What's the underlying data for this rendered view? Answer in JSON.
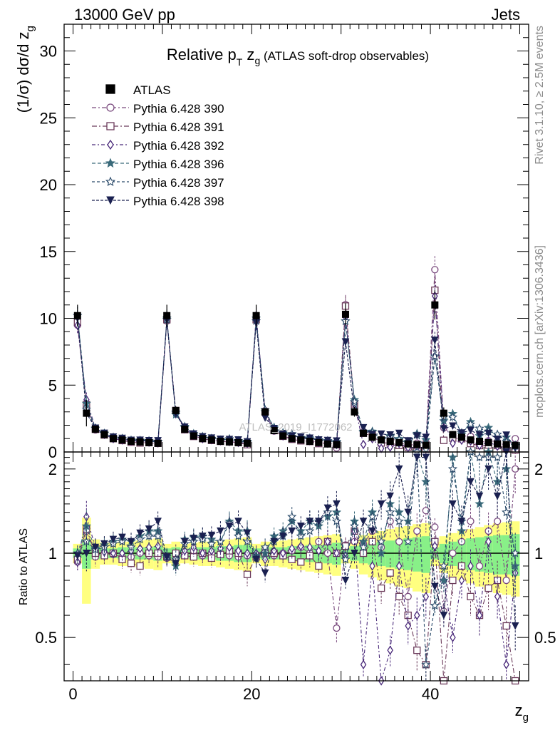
{
  "header": {
    "left": "13000 GeV pp",
    "right": "Jets"
  },
  "side_text": {
    "top": "Rivet 3.1.10, ≥ 2.5M events",
    "bottom": "mcplots.cern.ch [arXiv:1306.3436]"
  },
  "watermark": "ATLAS_2019_I1772062",
  "chart_data": {
    "type": "line",
    "title": "Relative p_T z_g (ATLAS soft-drop observables)",
    "xlabel": "z_g",
    "ylabel": "(1/σ) dσ/d z_g",
    "ratio_ylabel": "Ratio to ATLAS",
    "xlim": [
      -1,
      51
    ],
    "ylim": [
      0,
      32
    ],
    "ratio_ylim": [
      0.35,
      2.3
    ],
    "xticks": [
      0,
      20,
      40
    ],
    "yticks": [
      0,
      5,
      10,
      15,
      20,
      25,
      30
    ],
    "ratio_yticks": [
      0.5,
      1,
      2
    ],
    "legend_position": "top-left",
    "data": {
      "name": "ATLAS",
      "x": [
        0.5,
        1.5,
        2.5,
        3.5,
        4.5,
        5.5,
        6.5,
        7.5,
        8.5,
        9.5,
        10.5,
        11.5,
        12.5,
        13.5,
        14.5,
        15.5,
        16.5,
        17.5,
        18.5,
        19.5,
        20.5,
        21.5,
        22.5,
        23.5,
        24.5,
        25.5,
        26.5,
        27.5,
        28.5,
        29.5,
        30.5,
        31.5,
        32.5,
        33.5,
        34.5,
        35.5,
        36.5,
        37.5,
        38.5,
        39.5,
        40.5,
        41.5,
        42.5,
        43.5,
        44.5,
        45.5,
        46.5,
        47.5,
        48.5,
        49.5
      ],
      "y": [
        10.2,
        2.9,
        1.7,
        1.3,
        1.0,
        0.9,
        0.8,
        0.75,
        0.7,
        0.65,
        10.2,
        3.1,
        1.7,
        1.2,
        1.0,
        0.9,
        0.8,
        0.75,
        0.7,
        0.65,
        10.2,
        3.0,
        1.6,
        1.2,
        1.0,
        0.9,
        0.8,
        0.7,
        0.6,
        0.55,
        10.3,
        3.0,
        1.4,
        1.1,
        0.9,
        0.8,
        0.7,
        0.6,
        0.55,
        0.5,
        11.0,
        2.9,
        1.3,
        1.1,
        0.9,
        0.8,
        0.7,
        0.6,
        0.55,
        0.5
      ],
      "band_stat": [
        0.04,
        0.12,
        0.05,
        0.04,
        0.04,
        0.05,
        0.05,
        0.05,
        0.05,
        0.06,
        0.04,
        0.05,
        0.04,
        0.05,
        0.05,
        0.05,
        0.06,
        0.06,
        0.07,
        0.07,
        0.04,
        0.05,
        0.05,
        0.05,
        0.06,
        0.06,
        0.07,
        0.07,
        0.08,
        0.09,
        0.04,
        0.06,
        0.08,
        0.09,
        0.1,
        0.11,
        0.12,
        0.13,
        0.14,
        0.15,
        0.05,
        0.08,
        0.1,
        0.12,
        0.13,
        0.14,
        0.15,
        0.16,
        0.16,
        0.17
      ],
      "band_total": [
        0.08,
        0.34,
        0.12,
        0.09,
        0.09,
        0.1,
        0.1,
        0.11,
        0.12,
        0.13,
        0.08,
        0.1,
        0.08,
        0.09,
        0.1,
        0.1,
        0.11,
        0.12,
        0.13,
        0.14,
        0.08,
        0.1,
        0.1,
        0.11,
        0.12,
        0.13,
        0.14,
        0.15,
        0.16,
        0.17,
        0.08,
        0.12,
        0.16,
        0.18,
        0.2,
        0.22,
        0.24,
        0.25,
        0.27,
        0.28,
        0.1,
        0.15,
        0.18,
        0.2,
        0.22,
        0.24,
        0.26,
        0.28,
        0.29,
        0.3
      ]
    },
    "series": [
      {
        "name": "Pythia 6.428 390",
        "color": "#7a4a7e",
        "marker": "circle-open",
        "ratio": [
          0.93,
          1.2,
          0.97,
          1.0,
          0.99,
          0.97,
          0.97,
          1.0,
          0.98,
          0.97,
          0.96,
          0.95,
          0.99,
          1.02,
          0.98,
          1.0,
          0.99,
          0.98,
          0.97,
          0.98,
          0.99,
          1.03,
          0.98,
          1.0,
          1.02,
          1.05,
          1.0,
          1.1,
          1.0,
          0.54,
          1.07,
          1.1,
          1.08,
          1.2,
          1.05,
          1.3,
          1.1,
          0.7,
          1.2,
          1.42,
          1.24,
          0.62,
          1.0,
          1.1,
          1.3,
          0.9,
          1.2,
          1.3,
          0.8,
          2.0
        ]
      },
      {
        "name": "Pythia 6.428 391",
        "color": "#6b3a5a",
        "marker": "square-open",
        "ratio": [
          0.95,
          1.22,
          1.0,
          0.98,
          1.0,
          0.95,
          0.92,
          0.9,
          1.0,
          1.0,
          0.97,
          1.0,
          0.98,
          0.97,
          1.0,
          0.96,
          0.99,
          1.02,
          1.0,
          0.84,
          0.97,
          1.0,
          1.0,
          0.98,
          0.95,
          0.93,
          0.98,
          0.9,
          1.1,
          1.0,
          1.06,
          1.2,
          1.0,
          1.1,
          0.75,
          0.85,
          0.7,
          0.6,
          0.45,
          0.4,
          1.1,
          0.3,
          0.8,
          0.9,
          0.7,
          0.6,
          0.75,
          0.8,
          0.55,
          0.3
        ]
      },
      {
        "name": "Pythia 6.428 392",
        "color": "#4a2a7a",
        "marker": "diamond-open",
        "ratio": [
          0.93,
          1.35,
          1.05,
          1.01,
          1.0,
          1.0,
          1.02,
          1.04,
          1.05,
          1.06,
          0.97,
          0.92,
          1.02,
          1.05,
          1.0,
          1.02,
          1.04,
          1.05,
          1.02,
          1.0,
          1.0,
          0.95,
          1.02,
          1.0,
          1.04,
          1.06,
          1.05,
          1.02,
          1.1,
          1.0,
          0.98,
          1.2,
          0.4,
          0.9,
          0.3,
          0.45,
          0.9,
          0.55,
          0.6,
          0.7,
          1.06,
          0.8,
          0.5,
          0.8,
          0.9,
          0.6,
          1.1,
          0.7,
          0.4,
          0.85
        ]
      },
      {
        "name": "Pythia 6.428 396",
        "color": "#3a6a7a",
        "marker": "star-filled",
        "ratio": [
          1.0,
          1.25,
          1.04,
          1.07,
          1.1,
          1.12,
          1.1,
          1.15,
          1.2,
          1.2,
          0.98,
          0.9,
          1.12,
          1.14,
          1.15,
          1.12,
          1.1,
          1.3,
          1.2,
          1.2,
          0.98,
          1.0,
          1.15,
          1.2,
          1.3,
          1.2,
          1.3,
          1.25,
          1.35,
          1.4,
          0.95,
          1.3,
          1.1,
          1.4,
          1.0,
          1.5,
          1.4,
          1.3,
          2.5,
          1.8,
          0.65,
          0.8,
          2.2,
          1.2,
          2.5,
          1.5,
          2.6,
          1.8,
          2.0,
          0.9
        ]
      },
      {
        "name": "Pythia 6.428 397",
        "color": "#2a4a6a",
        "marker": "star-open",
        "ratio": [
          1.0,
          1.1,
          1.03,
          1.05,
          1.08,
          1.1,
          1.05,
          1.12,
          1.15,
          1.15,
          0.97,
          0.95,
          1.08,
          1.1,
          1.12,
          1.08,
          1.1,
          1.28,
          1.15,
          1.1,
          0.96,
          1.05,
          1.1,
          1.15,
          1.35,
          1.15,
          1.2,
          1.3,
          1.4,
          1.3,
          0.95,
          1.25,
          1.05,
          1.35,
          1.1,
          1.4,
          1.3,
          1.1,
          2.3,
          0.4,
          0.65,
          0.9,
          2.0,
          1.3,
          2.3,
          2.2,
          2.2,
          2.2,
          1.4,
          1.0
        ]
      },
      {
        "name": "Pythia 6.428 398",
        "color": "#1a2050",
        "marker": "triangle-down-filled",
        "ratio": [
          0.98,
          1.0,
          1.05,
          1.08,
          1.12,
          1.14,
          1.1,
          1.18,
          1.22,
          1.3,
          0.97,
          0.92,
          1.1,
          1.13,
          1.15,
          1.16,
          1.2,
          1.25,
          1.3,
          1.18,
          0.95,
          0.85,
          1.1,
          1.15,
          1.2,
          1.25,
          1.3,
          1.3,
          1.45,
          1.5,
          0.8,
          1.0,
          1.3,
          1.2,
          1.5,
          1.6,
          2.0,
          1.4,
          2.2,
          2.2,
          0.76,
          0.6,
          1.5,
          1.3,
          1.8,
          1.6,
          2.0,
          1.6,
          2.3,
          0.55
        ]
      }
    ]
  }
}
